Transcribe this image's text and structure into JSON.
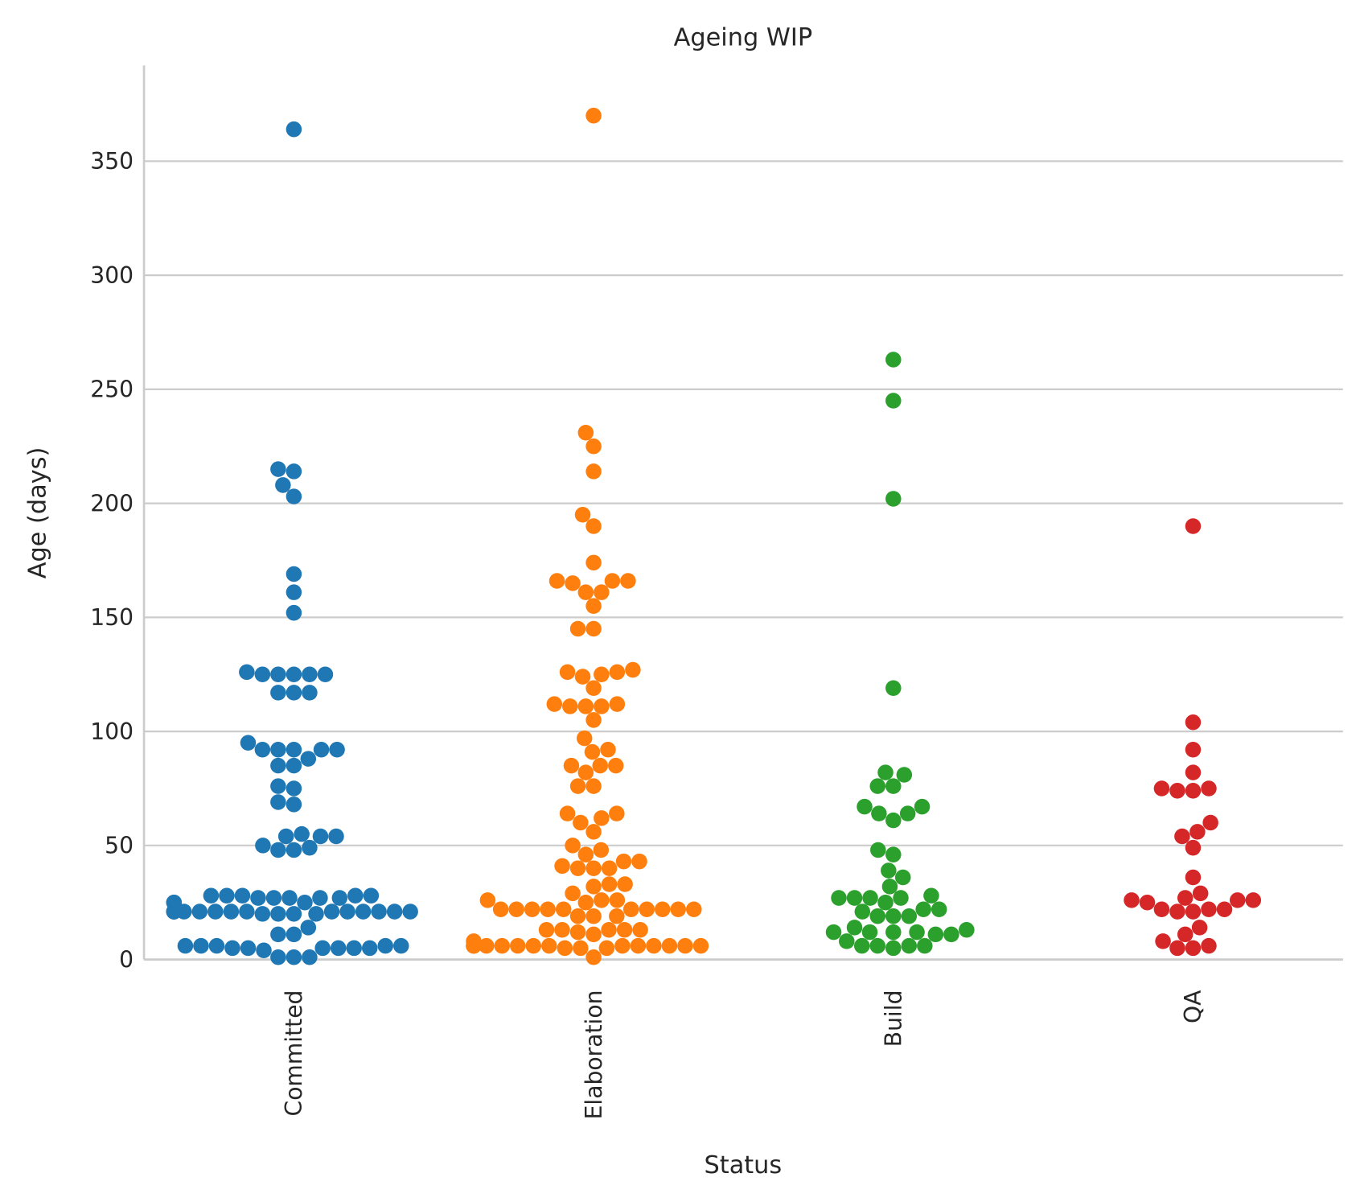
{
  "chart_data": {
    "type": "swarm",
    "title": "Ageing WIP",
    "x_label": "Status",
    "y_label": "Age (days)",
    "categories": [
      "Committed",
      "Elaboration",
      "Build",
      "QA"
    ],
    "colors": [
      "#1f77b4",
      "#ff7f0e",
      "#2ca02c",
      "#d62728"
    ],
    "values": [
      [
        364,
        215,
        214,
        208,
        203,
        169,
        161,
        152,
        126,
        125,
        125,
        125,
        125,
        125,
        117,
        117,
        117,
        95,
        92,
        92,
        92,
        92,
        92,
        88,
        85,
        85,
        76,
        75,
        69,
        68,
        55,
        54,
        54,
        54,
        50,
        49,
        48,
        48,
        28,
        28,
        28,
        28,
        28,
        27,
        27,
        27,
        27,
        27,
        25,
        25,
        25,
        21,
        21,
        21,
        21,
        21,
        21,
        21,
        21,
        21,
        21,
        21,
        21,
        21,
        21,
        21,
        20,
        20,
        20,
        20,
        14,
        11,
        11,
        6,
        6,
        6,
        6,
        6,
        5,
        5,
        5,
        5,
        5,
        5,
        4,
        1,
        1,
        1
      ],
      [
        370,
        231,
        225,
        214,
        195,
        190,
        174,
        166,
        166,
        166,
        165,
        161,
        161,
        155,
        145,
        145,
        127,
        126,
        126,
        125,
        124,
        119,
        112,
        112,
        111,
        111,
        111,
        105,
        97,
        92,
        91,
        85,
        85,
        85,
        82,
        76,
        76,
        64,
        64,
        62,
        60,
        56,
        50,
        48,
        46,
        43,
        43,
        41,
        40,
        40,
        40,
        33,
        33,
        32,
        29,
        26,
        26,
        26,
        25,
        22,
        22,
        22,
        22,
        22,
        22,
        22,
        22,
        22,
        22,
        19,
        19,
        19,
        13,
        13,
        13,
        13,
        13,
        12,
        11,
        8,
        6,
        6,
        6,
        6,
        6,
        6,
        6,
        6,
        6,
        6,
        6,
        6,
        6,
        6,
        5,
        5,
        5,
        1
      ],
      [
        263,
        245,
        202,
        119,
        82,
        81,
        76,
        76,
        67,
        67,
        64,
        64,
        61,
        48,
        46,
        39,
        36,
        32,
        28,
        27,
        27,
        27,
        27,
        25,
        22,
        22,
        21,
        19,
        19,
        19,
        14,
        13,
        12,
        12,
        12,
        12,
        11,
        11,
        8,
        6,
        6,
        6,
        6,
        5
      ],
      [
        190,
        104,
        92,
        82,
        75,
        75,
        74,
        74,
        60,
        56,
        54,
        49,
        36,
        29,
        27,
        26,
        26,
        26,
        25,
        22,
        22,
        22,
        21,
        21,
        14,
        11,
        8,
        6,
        5,
        5
      ]
    ],
    "ylim": [
      0,
      392
    ],
    "yticks": [
      0,
      50,
      100,
      150,
      200,
      250,
      300,
      350
    ],
    "grid": true
  }
}
